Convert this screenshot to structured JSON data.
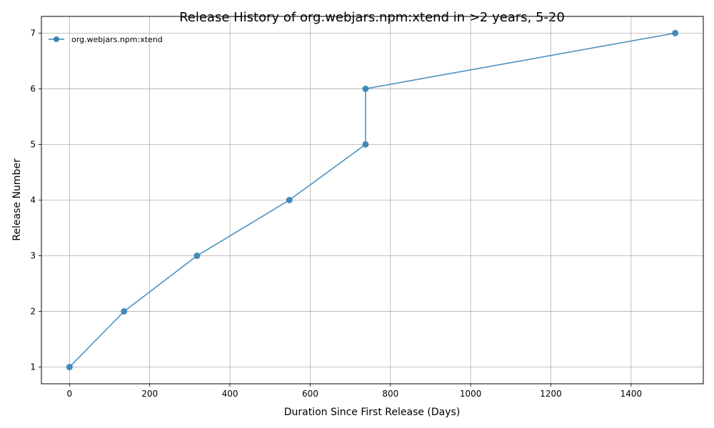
{
  "chart_data": {
    "type": "line",
    "title": "Release History of org.webjars.npm:xtend in >2 years, 5-20",
    "xlabel": "Duration Since First Release (Days)",
    "ylabel": "Release Number",
    "xlim": [
      -70,
      1580
    ],
    "ylim": [
      0.7,
      7.3
    ],
    "xticks": [
      0,
      200,
      400,
      600,
      800,
      1000,
      1200,
      1400
    ],
    "yticks": [
      1,
      2,
      3,
      4,
      5,
      6,
      7
    ],
    "grid": true,
    "legend_position": "top-left",
    "series": [
      {
        "name": "org.webjars.npm:xtend",
        "color": "#3a86b8",
        "marker": "circle",
        "x": [
          0,
          136,
          318,
          548,
          738,
          738,
          1510
        ],
        "y": [
          1,
          2,
          3,
          4,
          5,
          6,
          7
        ]
      }
    ]
  }
}
